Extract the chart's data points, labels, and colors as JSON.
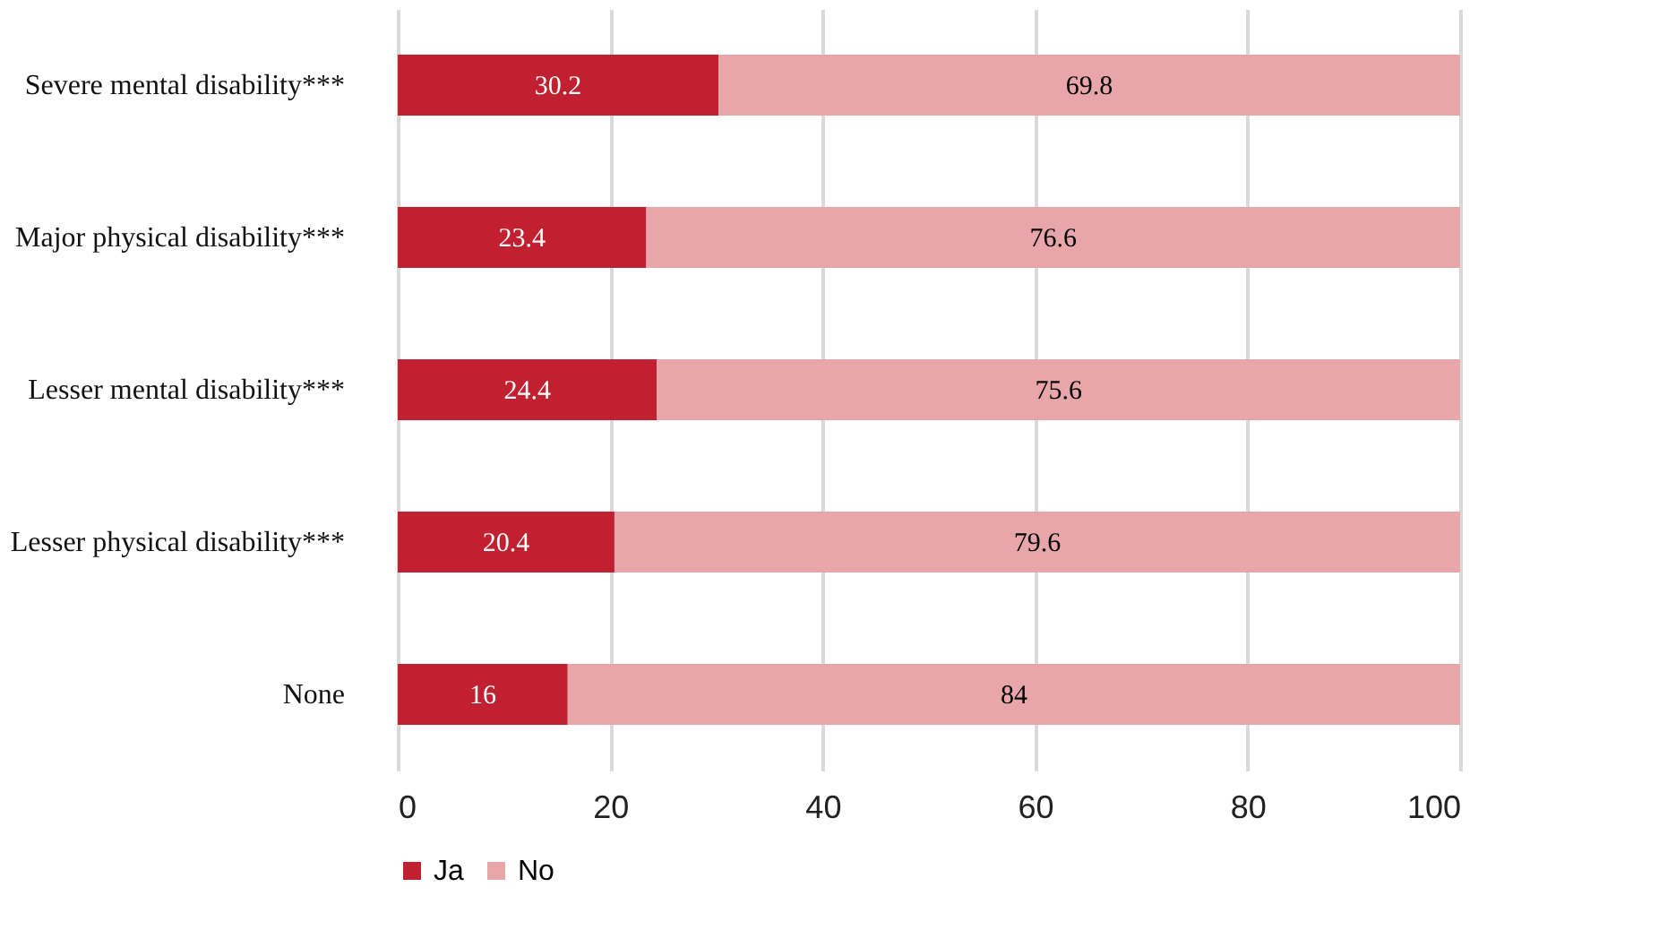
{
  "chart_data": {
    "type": "bar",
    "orientation": "horizontal",
    "stacked": true,
    "categories": [
      "Severe mental disability***",
      "Major physical disability***",
      "Lesser mental disability***",
      "Lesser physical disability***",
      "None"
    ],
    "series": [
      {
        "name": "Ja",
        "color": "#c0202f",
        "values": [
          30.2,
          23.4,
          24.4,
          20.4,
          16
        ]
      },
      {
        "name": "No",
        "color": "#e8a6aa",
        "values": [
          69.8,
          76.6,
          75.6,
          79.6,
          84
        ]
      }
    ],
    "xlim": [
      0,
      100
    ],
    "xticks": [
      0,
      20,
      40,
      60,
      80,
      100
    ],
    "grid": "x",
    "legend": "bottom",
    "data_labels": true
  }
}
